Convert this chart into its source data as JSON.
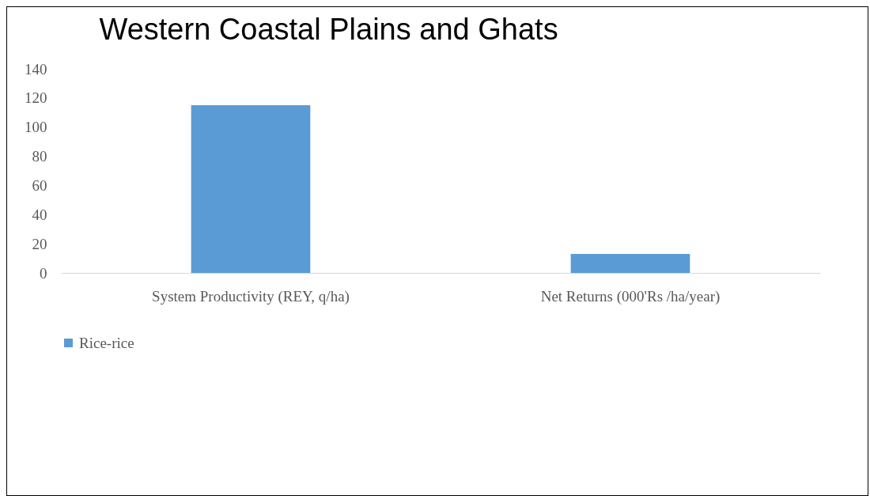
{
  "chart_data": {
    "type": "bar",
    "title": "Western Coastal Plains and Ghats",
    "categories": [
      "System Productivity (REY, q/ha)",
      "Net Returns (000'Rs /ha/year)"
    ],
    "series": [
      {
        "name": "Rice-rice",
        "color": "#5b9bd5",
        "values": [
          115,
          13
        ]
      }
    ],
    "ylim": [
      0,
      140
    ],
    "yticks": [
      0,
      20,
      40,
      60,
      80,
      100,
      120,
      140
    ],
    "grid": false,
    "legend": "bottom"
  }
}
